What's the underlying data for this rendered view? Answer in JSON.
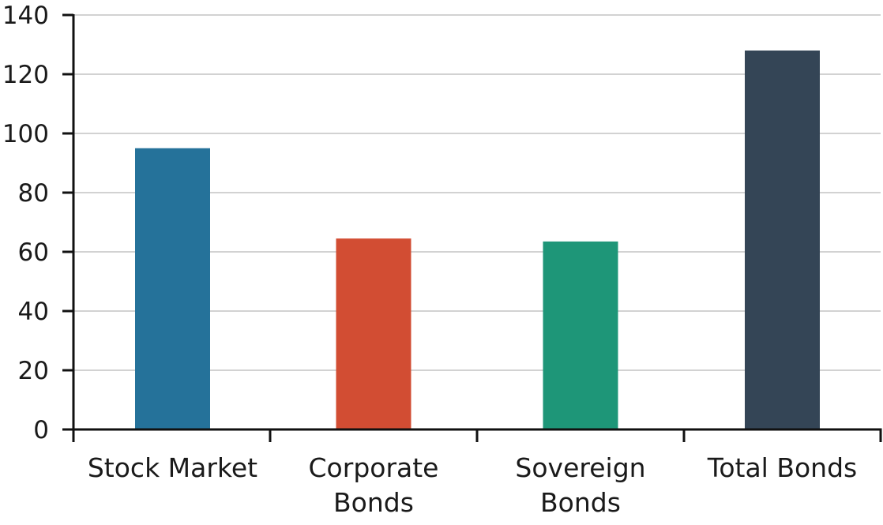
{
  "chart_data": {
    "type": "bar",
    "title": "",
    "xlabel": "",
    "ylabel": "",
    "ylim": [
      0,
      140
    ],
    "yticks": [
      0,
      20,
      40,
      60,
      80,
      100,
      120,
      140
    ],
    "grid": true,
    "categories": [
      [
        "Stock Market"
      ],
      [
        "Corporate",
        "Bonds"
      ],
      [
        "Sovereign",
        "Bonds"
      ],
      [
        "Total Bonds"
      ]
    ],
    "values": [
      95,
      64.5,
      63.5,
      128
    ],
    "colors": [
      "#25729a",
      "#d24d33",
      "#1e9678",
      "#344556"
    ]
  }
}
